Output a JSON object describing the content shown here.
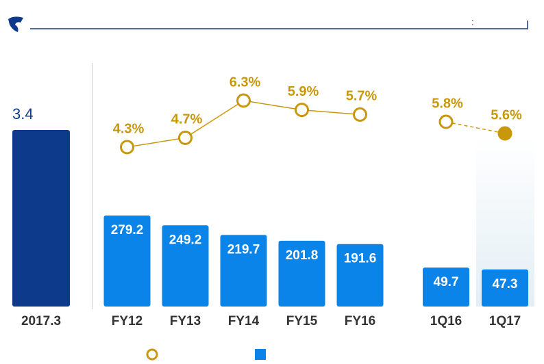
{
  "header": {
    "text": ":"
  },
  "chart_data": [
    {
      "type": "bar",
      "categories": [
        "2017.3"
      ],
      "values": [
        3.4
      ],
      "color": "#0d3a8a"
    },
    {
      "type": "combo",
      "categories": [
        "FY12",
        "FY13",
        "FY14",
        "FY15",
        "FY16"
      ],
      "series": [
        {
          "type": "bar",
          "color": "#0a84e8",
          "values": [
            279.2,
            249.2,
            219.7,
            201.8,
            191.6
          ]
        },
        {
          "type": "line",
          "color": "#c9980a",
          "values": [
            4.3,
            4.7,
            6.3,
            5.9,
            5.7
          ],
          "value_labels": [
            "4.3%",
            "4.7%",
            "6.3%",
            "5.9%",
            "5.7%"
          ]
        }
      ]
    },
    {
      "type": "combo",
      "categories": [
        "1Q16",
        "1Q17"
      ],
      "series": [
        {
          "type": "bar",
          "color": "#0a84e8",
          "values": [
            49.7,
            47.3
          ]
        },
        {
          "type": "line",
          "color": "#c9980a",
          "dashed": true,
          "values": [
            5.8,
            5.6
          ],
          "value_labels": [
            "5.8%",
            "5.6%"
          ]
        }
      ]
    }
  ]
}
